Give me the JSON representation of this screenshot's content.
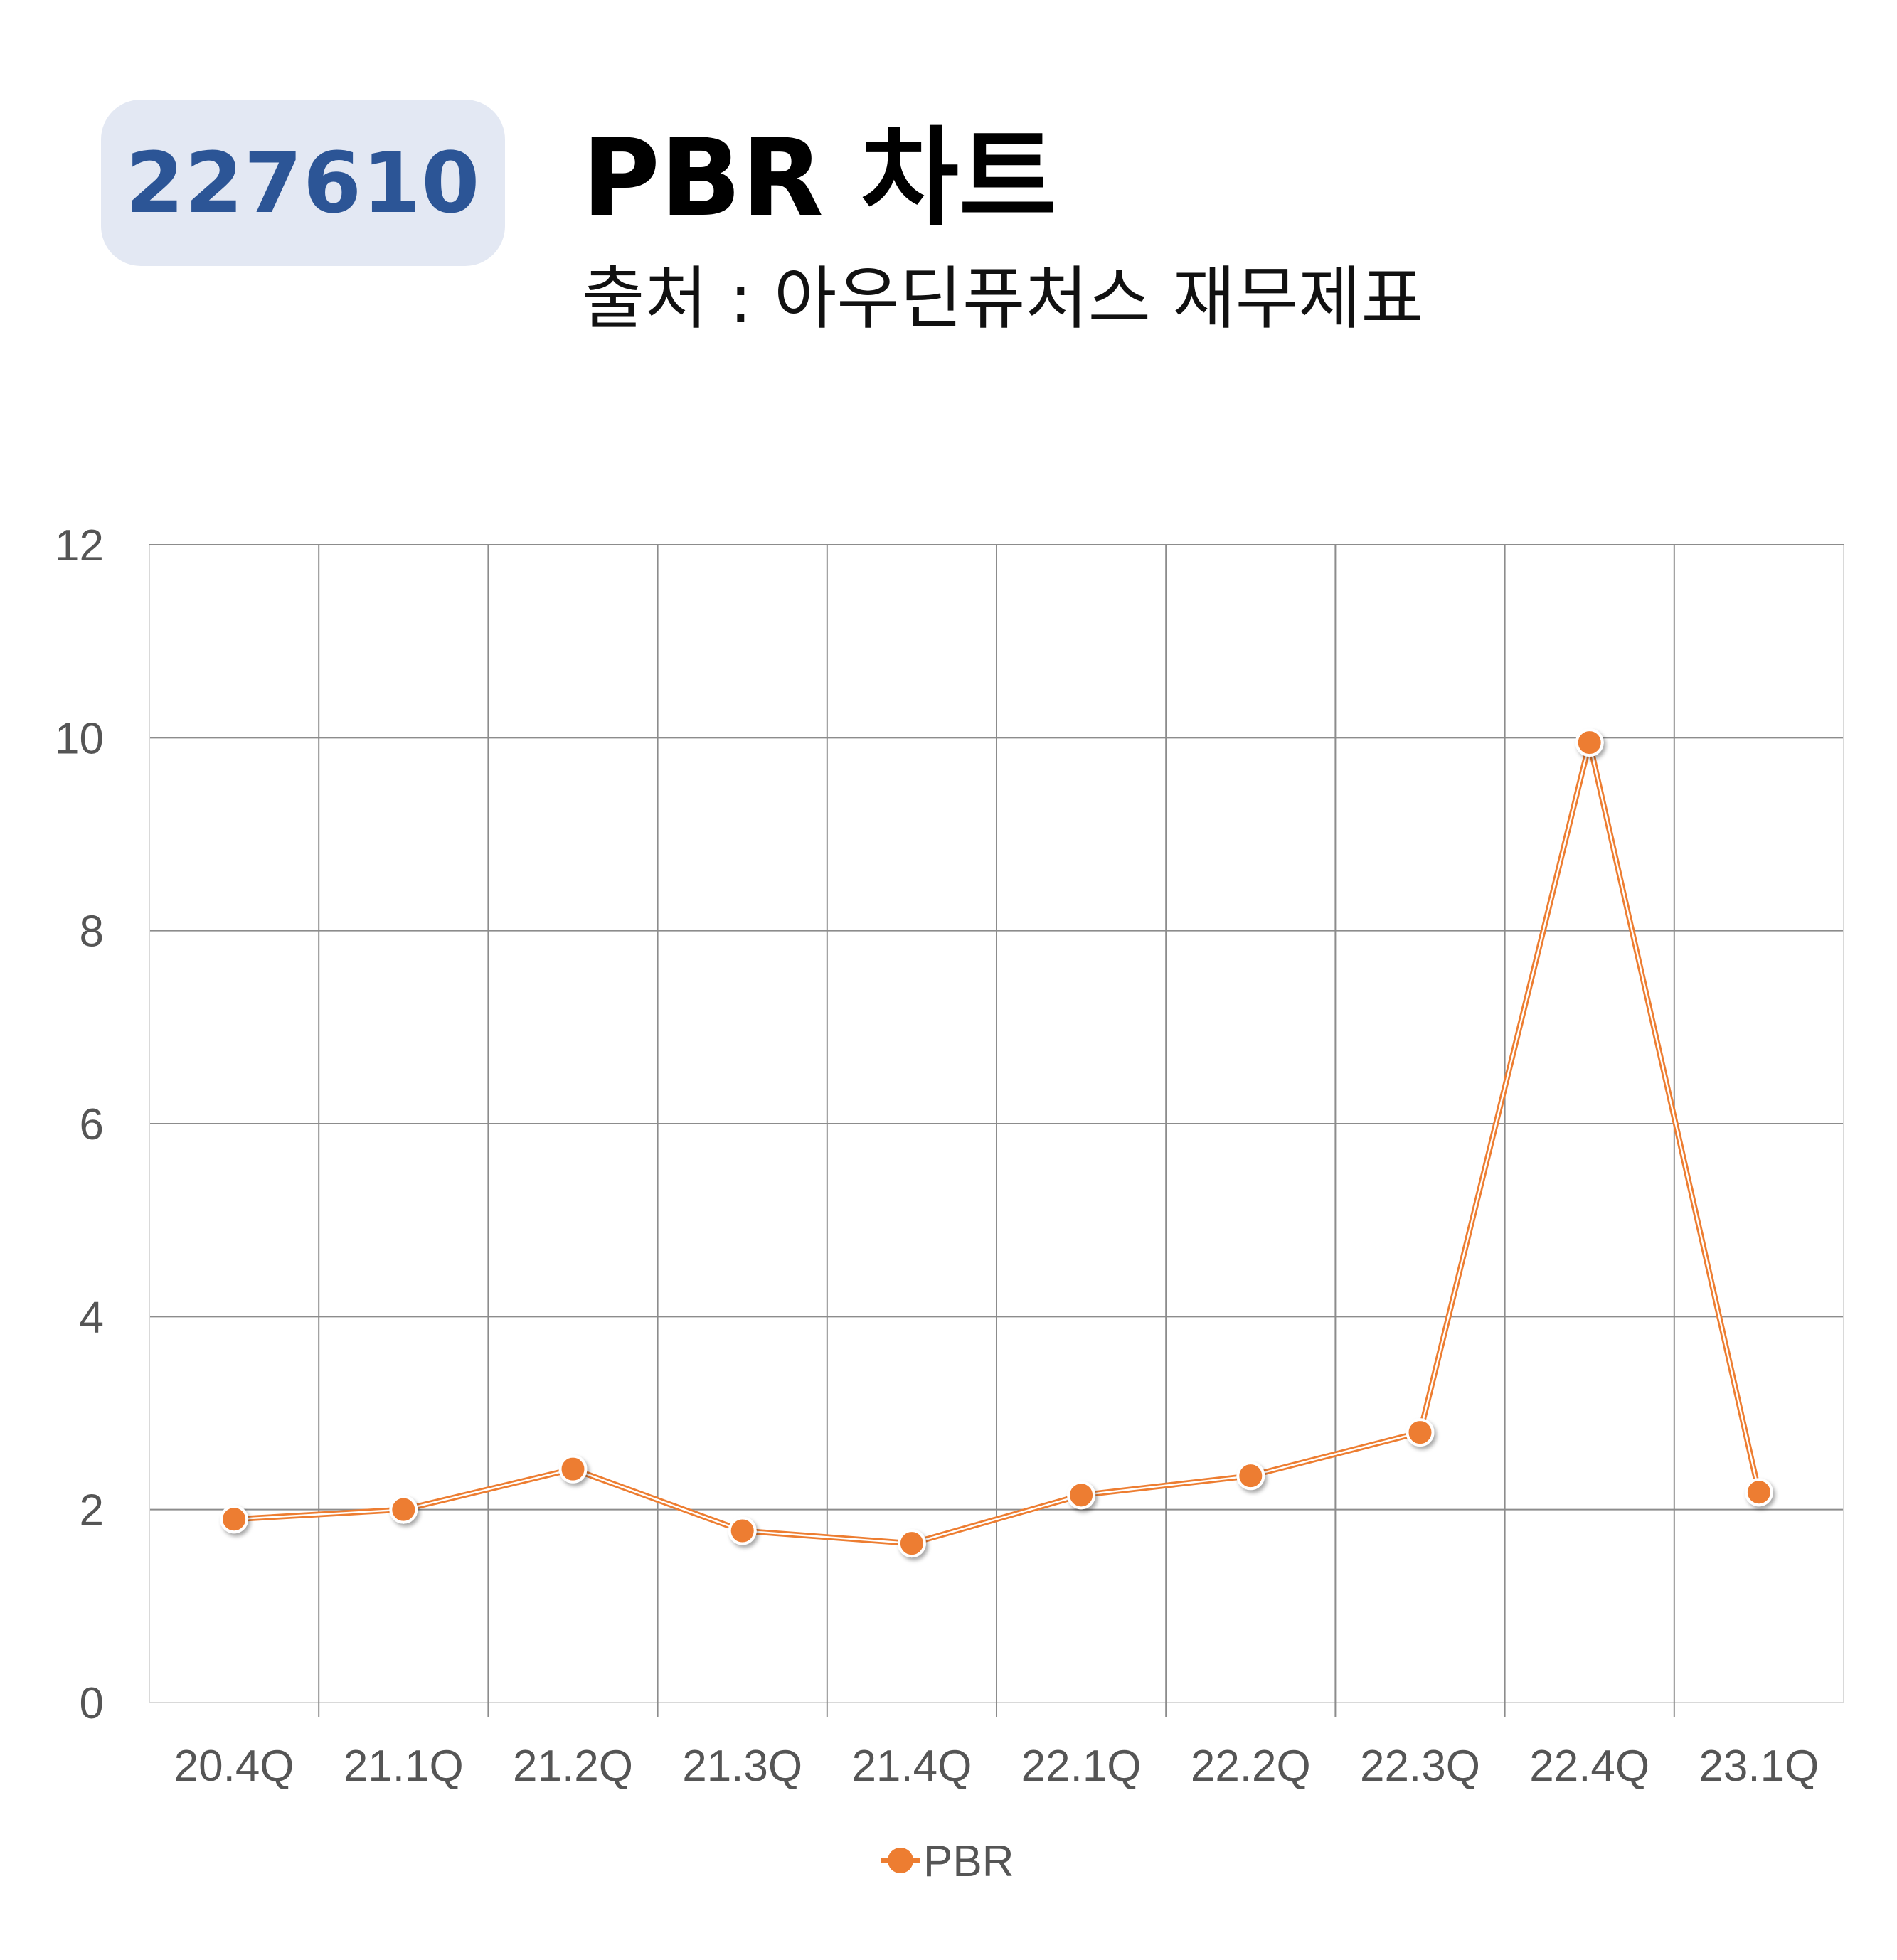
{
  "header": {
    "code": "227610",
    "title": "PBR 차트",
    "subtitle": "출처 : 아우딘퓨처스 재무제표"
  },
  "colors": {
    "badge_bg": "#e3e8f3",
    "badge_text": "#2c5596",
    "series": "#ed7d31",
    "grid": "#8c8c8c",
    "tick_text": "#555555"
  },
  "chart_data": {
    "type": "line",
    "categories": [
      "20.4Q",
      "21.1Q",
      "21.2Q",
      "21.3Q",
      "21.4Q",
      "22.1Q",
      "22.2Q",
      "22.3Q",
      "22.4Q",
      "23.1Q"
    ],
    "series": [
      {
        "name": "PBR",
        "values": [
          1.9,
          2.0,
          2.42,
          1.78,
          1.65,
          2.15,
          2.35,
          2.8,
          9.95,
          2.18
        ]
      }
    ],
    "ylim": [
      0,
      12
    ],
    "yticks": [
      0,
      2,
      4,
      6,
      8,
      10,
      12
    ],
    "grid": true,
    "legend_position": "bottom"
  }
}
